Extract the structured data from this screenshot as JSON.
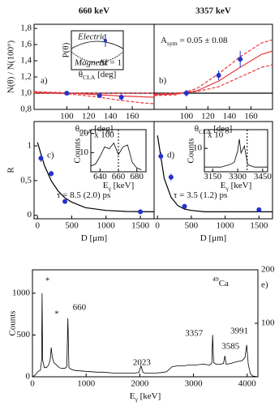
{
  "chart_data": [
    {
      "type": "scatter",
      "title": "660 keV",
      "label": "a)",
      "ylabel": "N(θ) / N(100°)",
      "xlabel": [
        "θ",
        "CLA",
        " [deg]"
      ],
      "xlim": [
        70,
        180
      ],
      "xticks": [
        100,
        120,
        140,
        160
      ],
      "ylim": [
        0.8,
        1.85
      ],
      "yticks": [
        {
          "value": 0.8,
          "label": "0,8"
        },
        {
          "value": 1.0,
          "label": "1,0"
        },
        {
          "value": 1.2,
          "label": "1,2"
        },
        {
          "value": 1.4,
          "label": "1,4"
        },
        {
          "value": 1.6,
          "label": "1,6"
        },
        {
          "value": 1.8,
          "label": "1,8"
        }
      ],
      "refline": 1.0,
      "color": "#2233cc",
      "x": [
        100,
        130,
        150
      ],
      "values": [
        1.0,
        0.97,
        0.95
      ],
      "errors": [
        0.02,
        0.03,
        0.04
      ],
      "fits": [
        {
          "color": "#e8383d",
          "dashed": false,
          "x": [
            70,
            90,
            110,
            130,
            150,
            170,
            180
          ],
          "values": [
            1.01,
            1.005,
            0.995,
            0.98,
            0.965,
            0.955,
            0.95
          ]
        },
        {
          "color": "#e8383d",
          "dashed": true,
          "x": [
            70,
            90,
            110,
            130,
            150,
            170,
            180
          ],
          "values": [
            1.02,
            1.01,
            1.0,
            1.0,
            1.0,
            1.0,
            1.0
          ]
        },
        {
          "color": "#e8383d",
          "dashed": true,
          "x": [
            70,
            90,
            110,
            130,
            150,
            170,
            180
          ],
          "values": [
            1.0,
            1.0,
            0.98,
            0.95,
            0.91,
            0.88,
            0.87
          ]
        }
      ],
      "inset": {
        "electric": "Electric",
        "magnetic": "Magnetic",
        "delta": "ΔI = 1",
        "ylabel": "P(θ)",
        "xlabel": [
          "θ",
          "CLA",
          " [deg]"
        ]
      }
    },
    {
      "type": "scatter",
      "title": "3357 keV",
      "label": "b)",
      "annotation": [
        "A",
        "sym",
        " = 0.05 ± 0.08"
      ],
      "xlabel": [
        "θ",
        "CLA",
        " [deg]"
      ],
      "xlim": [
        70,
        180
      ],
      "xticks": [
        100,
        120,
        140,
        160
      ],
      "ylim": [
        0.8,
        1.85
      ],
      "refline": 1.0,
      "color": "#2233cc",
      "x": [
        100,
        130,
        150
      ],
      "values": [
        1.0,
        1.22,
        1.42
      ],
      "errors": [
        0.04,
        0.06,
        0.1
      ],
      "fits": [
        {
          "color": "#e8383d",
          "dashed": false,
          "x": [
            70,
            90,
            110,
            130,
            150,
            170,
            180
          ],
          "values": [
            0.98,
            0.99,
            1.03,
            1.15,
            1.32,
            1.48,
            1.52
          ]
        },
        {
          "color": "#e8383d",
          "dashed": true,
          "x": [
            70,
            90,
            110,
            130,
            150,
            170,
            180
          ],
          "values": [
            0.97,
            0.98,
            1.06,
            1.24,
            1.45,
            1.62,
            1.66
          ]
        },
        {
          "color": "#e8383d",
          "dashed": true,
          "x": [
            70,
            90,
            110,
            130,
            150,
            170,
            180
          ],
          "values": [
            0.99,
            1.0,
            1.02,
            1.08,
            1.2,
            1.32,
            1.35
          ]
        }
      ]
    },
    {
      "type": "scatter",
      "label": "c)",
      "ylabel": "R",
      "xlabel": [
        "D [μm]"
      ],
      "annotation": [
        "τ = 8.5 (2.0) ps"
      ],
      "xlim": [
        -50,
        1700
      ],
      "xticks": [
        0,
        500,
        1000,
        1500
      ],
      "ylim": [
        -0.05,
        1.35
      ],
      "yticks": [
        0,
        {
          "value": 0.5,
          "label": "0,5"
        },
        1
      ],
      "color": "#2233cc",
      "x": [
        50,
        200,
        400,
        1500
      ],
      "values": [
        0.82,
        0.6,
        0.2,
        0.05
      ],
      "errors": [
        0.05,
        0.04,
        0.03,
        0.02
      ],
      "fits": [
        {
          "color": "#000000",
          "dashed": false,
          "x": [
            0,
            100,
            200,
            300,
            400,
            500,
            700,
            1000,
            1300,
            1700
          ],
          "values": [
            1.05,
            0.72,
            0.5,
            0.35,
            0.25,
            0.19,
            0.11,
            0.07,
            0.055,
            0.05
          ]
        }
      ],
      "inset": {
        "type": "line",
        "scale": "x 100",
        "ylabel": "Counts",
        "xlabel": [
          "E",
          "γ",
          " [keV]"
        ],
        "xlim": [
          630,
          690
        ],
        "xticks": [
          640,
          660,
          680
        ],
        "ylim": [
          0,
          22
        ],
        "yticks": [
          10,
          20
        ],
        "refx": 660,
        "x": [
          630,
          635,
          640,
          645,
          650,
          655,
          660,
          665,
          670,
          675,
          680,
          685
        ],
        "values": [
          3,
          4,
          8,
          13,
          12,
          15,
          9,
          13,
          14,
          5,
          2,
          1
        ]
      }
    },
    {
      "type": "scatter",
      "label": "d)",
      "xlabel": [
        "D [μm]"
      ],
      "annotation": [
        "τ = 3.5 (1.2) ps"
      ],
      "xlim": [
        -50,
        1700
      ],
      "xticks": [
        0,
        500,
        1000,
        1500
      ],
      "ylim": [
        -0.05,
        1.35
      ],
      "color": "#2233cc",
      "x": [
        50,
        200,
        400,
        1500
      ],
      "values": [
        0.85,
        0.55,
        0.13,
        0.08
      ],
      "errors": [
        0.06,
        0.05,
        0.03,
        0.02
      ],
      "fits": [
        {
          "color": "#000000",
          "dashed": false,
          "x": [
            0,
            100,
            200,
            300,
            400,
            500,
            700,
            1000,
            1300,
            1700
          ],
          "values": [
            1.15,
            0.53,
            0.26,
            0.14,
            0.09,
            0.07,
            0.05,
            0.05,
            0.05,
            0.05
          ]
        }
      ],
      "inset": {
        "type": "line",
        "scale": "x 10",
        "ylabel": "Counts",
        "xlabel": [
          "E",
          "γ",
          " [keV]"
        ],
        "xlim": [
          3100,
          3480
        ],
        "xticks": [
          3150,
          3300,
          3450
        ],
        "ylim": [
          0,
          18
        ],
        "yticks": [
          10
        ],
        "refx": 3357,
        "x": [
          3100,
          3150,
          3200,
          3250,
          3280,
          3300,
          3310,
          3320,
          3340,
          3360,
          3400,
          3450,
          3480
        ],
        "values": [
          2,
          2,
          2,
          3,
          4,
          9,
          14,
          8,
          11,
          3,
          2,
          2,
          2
        ]
      }
    },
    {
      "type": "line",
      "label": "e)",
      "ylabel": "Counts",
      "xlabel": [
        "E",
        "γ",
        " [keV]"
      ],
      "nucleus": [
        "49",
        "Ca"
      ],
      "xlim": [
        0,
        4200
      ],
      "xticks": [
        0,
        1000,
        2000,
        3000,
        4000
      ],
      "ylim": [
        0,
        1280
      ],
      "yticks": [
        0,
        500,
        1000
      ],
      "y2lim": [
        0,
        200
      ],
      "y2ticks": [
        100,
        200
      ],
      "color": "#000000",
      "x": [
        0,
        50,
        100,
        150,
        170,
        180,
        190,
        220,
        260,
        300,
        330,
        350,
        370,
        400,
        450,
        500,
        550,
        600,
        640,
        660,
        680,
        720,
        800,
        900,
        1000,
        1100,
        1200,
        1300,
        1400,
        1500,
        1600,
        1700,
        1800,
        1900,
        1980,
        2023,
        2060,
        2100,
        2200,
        2300,
        2400,
        2500,
        2600,
        2700,
        2800,
        2900,
        3000,
        3100,
        3200,
        3300,
        3340,
        3357,
        3375,
        3420,
        3500,
        3560,
        3585,
        3610,
        3700,
        3800,
        3900,
        3960,
        3991,
        4020,
        4060,
        4100,
        4200
      ],
      "values": [
        0,
        20,
        60,
        80,
        200,
        1000,
        200,
        110,
        110,
        140,
        200,
        350,
        230,
        170,
        140,
        110,
        100,
        100,
        120,
        700,
        110,
        90,
        75,
        70,
        65,
        60,
        55,
        55,
        50,
        45,
        45,
        45,
        45,
        45,
        50,
        130,
        50,
        45,
        45,
        45,
        50,
        60,
        120,
        130,
        130,
        140,
        140,
        145,
        150,
        140,
        160,
        500,
        170,
        150,
        150,
        160,
        250,
        150,
        160,
        180,
        190,
        230,
        380,
        150,
        40,
        10,
        0
      ],
      "peaks": [
        {
          "label": "*",
          "x": 180,
          "color": "#000000"
        },
        {
          "label": "*",
          "x": 350,
          "color": "#000000"
        },
        {
          "label": "660",
          "x": 660,
          "color": "#2233cc"
        },
        {
          "label": "2023",
          "x": 2023,
          "color": "#000000"
        },
        {
          "label": "3357",
          "x": 3357,
          "color": "#2233cc"
        },
        {
          "label": "3585",
          "x": 3585,
          "color": "#000000"
        },
        {
          "label": "3991",
          "x": 3991,
          "color": "#000000"
        }
      ]
    }
  ]
}
